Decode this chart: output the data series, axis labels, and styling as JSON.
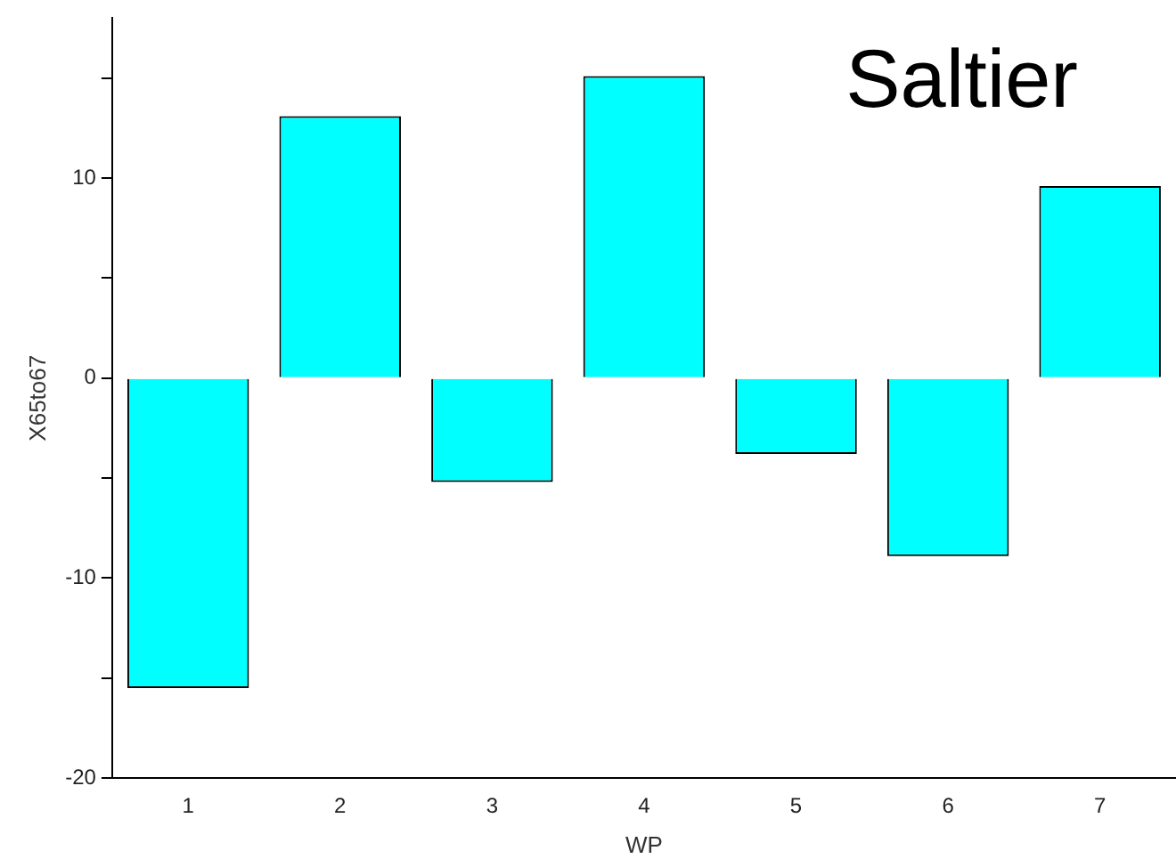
{
  "chart_data": {
    "type": "bar",
    "xlabel": "WP",
    "ylabel": "X65to67",
    "annotations": [
      "Saltier"
    ],
    "categories": [
      "1",
      "2",
      "3",
      "4",
      "5",
      "6",
      "7"
    ],
    "values": [
      -15.5,
      13.1,
      -5.2,
      15.1,
      -3.8,
      -8.9,
      9.6
    ],
    "color": "#00ffff",
    "ylim": [
      -20,
      18
    ],
    "yticks": [
      -20,
      {
        "value": -15,
        "label": null
      },
      -10,
      {
        "value": -5,
        "label": null
      },
      0,
      {
        "value": 5,
        "label": null
      },
      10,
      {
        "value": 15,
        "label": null
      }
    ],
    "grid": false,
    "legend": false
  }
}
